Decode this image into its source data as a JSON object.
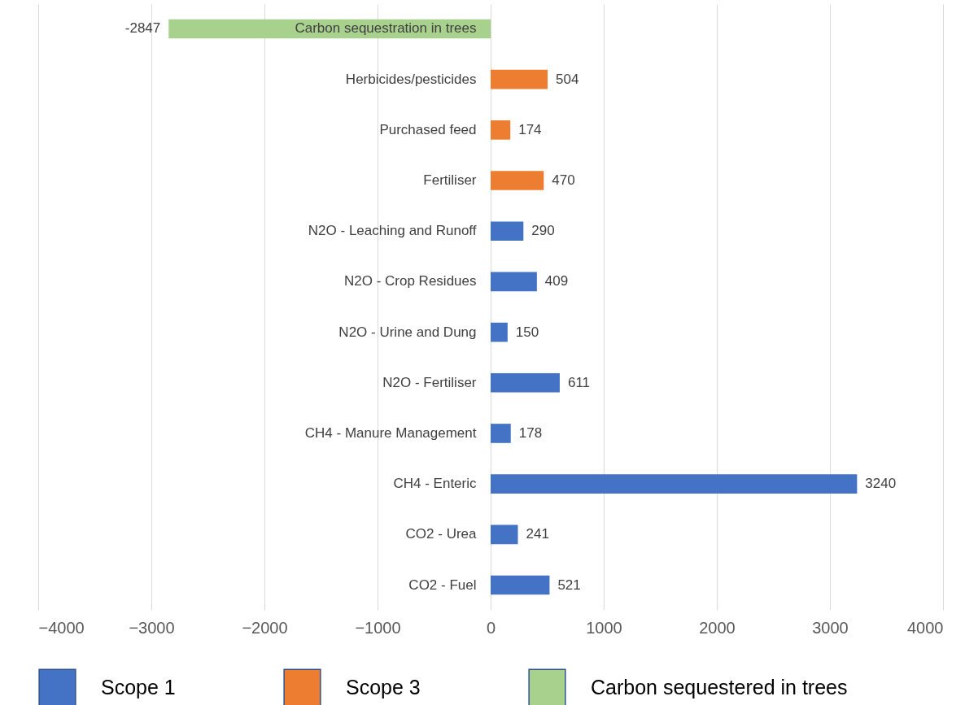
{
  "chart_data": {
    "type": "bar",
    "orientation": "horizontal",
    "categories": [
      "Carbon sequestration in trees",
      "Herbicides/pesticides",
      "Purchased feed",
      "Fertiliser",
      "N2O - Leaching and Runoff",
      "N2O - Crop Residues",
      "N2O - Urine and Dung",
      "N2O - Fertiliser",
      "CH4 - Manure Management",
      "CH4 - Enteric",
      "CO2 - Urea",
      "CO2 - Fuel"
    ],
    "series": [
      {
        "name": "Scope 1",
        "color": "#4472c4",
        "values": [
          null,
          null,
          null,
          null,
          290,
          409,
          150,
          611,
          178,
          3240,
          241,
          521
        ]
      },
      {
        "name": "Scope 3",
        "color": "#ed7d31",
        "values": [
          null,
          504,
          174,
          470,
          null,
          null,
          null,
          null,
          null,
          null,
          null,
          null
        ]
      },
      {
        "name": "Carbon sequestered in trees",
        "color": "#a9d18e",
        "values": [
          -2847,
          null,
          null,
          null,
          null,
          null,
          null,
          null,
          null,
          null,
          null,
          null
        ]
      }
    ],
    "xlim": [
      -4000,
      4000
    ],
    "xticks": [
      -4000,
      -3000,
      -2000,
      -1000,
      0,
      1000,
      2000,
      3000,
      4000
    ],
    "grid": "x",
    "legend": "bottom",
    "data_labels": true
  }
}
